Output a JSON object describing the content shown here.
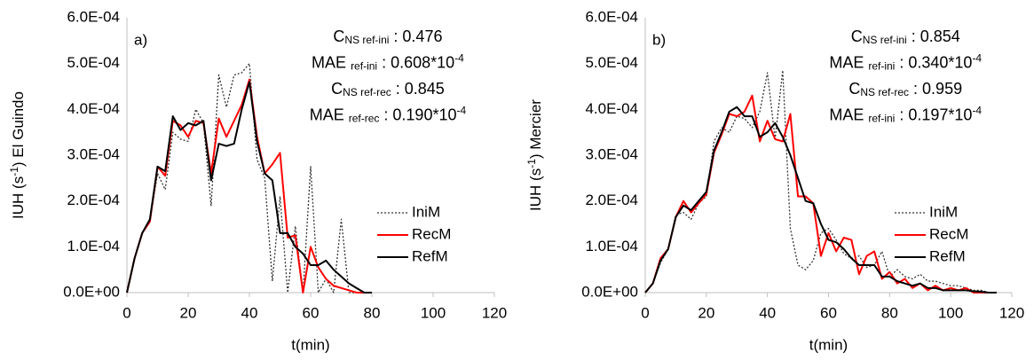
{
  "chart_data": [
    {
      "type": "line",
      "panel": "a)",
      "ylabel": [
        {
          "text": "IUH (s"
        },
        {
          "sup": "-1"
        },
        {
          "text": ")  El Guindo"
        }
      ],
      "xlabel": "t(min)",
      "xlim": [
        0,
        120
      ],
      "xticks": [
        0,
        20,
        40,
        60,
        80,
        100,
        120
      ],
      "ylim": [
        0,
        0.0006
      ],
      "yticks": [
        {
          "value": 0,
          "label": "0.0E+00"
        },
        {
          "value": 0.0001,
          "label": "1.0E-04"
        },
        {
          "value": 0.0002,
          "label": "2.0E-04"
        },
        {
          "value": 0.0003,
          "label": "3.0E-04"
        },
        {
          "value": 0.0004,
          "label": "4.0E-04"
        },
        {
          "value": 0.0005,
          "label": "5.0E-04"
        },
        {
          "value": 0.0006,
          "label": "6.0E-04"
        }
      ],
      "grid": false,
      "legend": "lower right",
      "annotations": [
        [
          {
            "text": "C"
          },
          {
            "sub": "NS ref-ini"
          },
          {
            "text": " : 0.476"
          }
        ],
        [
          {
            "text": "MAE "
          },
          {
            "sub": "ref-ini"
          },
          {
            "text": " : 0.608*10"
          },
          {
            "sup": "-4"
          }
        ],
        [
          {
            "text": "C"
          },
          {
            "sub": "NS ref-rec"
          },
          {
            "text": " : 0.845"
          }
        ],
        [
          {
            "text": "MAE "
          },
          {
            "sub": "ref-rec"
          },
          {
            "text": " : 0.190*10"
          },
          {
            "sup": "-4"
          }
        ]
      ],
      "x": [
        0,
        2.5,
        5,
        7.5,
        10,
        12.5,
        15,
        17.5,
        20,
        22.5,
        25,
        27.5,
        30,
        32.5,
        35,
        37.5,
        40,
        42.5,
        45,
        47.5,
        50,
        52.5,
        55,
        57.5,
        60,
        62.5,
        65,
        67.5,
        70,
        72.5,
        75,
        77.5,
        80
      ],
      "series": [
        {
          "name": "IniM",
          "color": "#333333",
          "style": "dotted",
          "values": [
            0,
            7.5e-05,
            0.00013,
            0.000155,
            0.00026,
            0.000225,
            0.00035,
            0.000335,
            0.00033,
            0.0004,
            0.00037,
            0.00019,
            0.000475,
            0.000405,
            0.000475,
            0.00048,
            0.0005,
            0.00029,
            0.00025,
            2.5e-05,
            0.00021,
            0,
            0.000145,
            0,
            0.000275,
            0,
            3e-05,
            0,
            0.00016,
            0,
            0,
            0,
            0
          ]
        },
        {
          "name": "RecM",
          "color": "#ff0000",
          "style": "solid",
          "values": [
            0,
            7.5e-05,
            0.00013,
            0.000155,
            0.000275,
            0.000255,
            0.000375,
            0.000365,
            0.00034,
            0.000375,
            0.00037,
            0.00026,
            0.00038,
            0.00034,
            0.000375,
            0.00041,
            0.000465,
            0.00034,
            0.00026,
            0.00028,
            0.000305,
            0.00012,
            0.000125,
            0,
            0.0001,
            5.5e-05,
            3e-05,
            1.5e-05,
            1e-05,
            5e-06,
            0,
            0,
            0
          ]
        },
        {
          "name": "RefM",
          "color": "#000000",
          "style": "solid",
          "values": [
            0,
            7.5e-05,
            0.00013,
            0.00016,
            0.000275,
            0.000265,
            0.000385,
            0.000355,
            0.00037,
            0.000365,
            0.000375,
            0.000245,
            0.000325,
            0.00032,
            0.000325,
            0.0004,
            0.00046,
            0.00033,
            0.00026,
            0.000245,
            0.00013,
            0.00013,
            0.0001,
            8.5e-05,
            6e-05,
            6e-05,
            7e-05,
            5e-05,
            3.5e-05,
            2e-05,
            1e-05,
            0,
            0
          ]
        }
      ]
    },
    {
      "type": "line",
      "panel": "b)",
      "ylabel": [
        {
          "text": "IUH (s"
        },
        {
          "sup": "-1"
        },
        {
          "text": ")  Mercier"
        }
      ],
      "xlabel": "t(min)",
      "xlim": [
        0,
        120
      ],
      "xticks": [
        0,
        20,
        40,
        60,
        80,
        100,
        120
      ],
      "ylim": [
        0,
        0.0006
      ],
      "yticks": [
        {
          "value": 0,
          "label": "0.0E+00"
        },
        {
          "value": 0.0001,
          "label": "1.0E-04"
        },
        {
          "value": 0.0002,
          "label": "2.0E-04"
        },
        {
          "value": 0.0003,
          "label": "3.0E-04"
        },
        {
          "value": 0.0004,
          "label": "4.0E-04"
        },
        {
          "value": 0.0005,
          "label": "5.0E-04"
        },
        {
          "value": 0.0006,
          "label": "6.0E-04"
        }
      ],
      "grid": false,
      "legend": "lower right",
      "annotations": [
        [
          {
            "text": "C"
          },
          {
            "sub": "NS ref-ini"
          },
          {
            "text": " : 0.854"
          }
        ],
        [
          {
            "text": "MAE "
          },
          {
            "sub": "ref-ini"
          },
          {
            "text": " : 0.340*10"
          },
          {
            "sup": "-4"
          }
        ],
        [
          {
            "text": "C"
          },
          {
            "sub": "NS ref-rec"
          },
          {
            "text": " : 0.959"
          }
        ],
        [
          {
            "text": "MAE "
          },
          {
            "sub": "ref-ini"
          },
          {
            "text": " : 0.197*10"
          },
          {
            "sup": "-4"
          }
        ]
      ],
      "x": [
        0,
        2.5,
        5,
        7.5,
        10,
        12.5,
        15,
        17.5,
        20,
        22.5,
        25,
        27.5,
        30,
        32.5,
        35,
        37.5,
        40,
        42.5,
        45,
        47.5,
        50,
        52.5,
        55,
        57.5,
        60,
        62.5,
        65,
        67.5,
        70,
        72.5,
        75,
        77.5,
        80,
        82.5,
        85,
        87.5,
        90,
        92.5,
        95,
        97.5,
        100,
        102.5,
        105,
        107.5,
        110,
        112.5,
        115
      ],
      "series": [
        {
          "name": "IniM",
          "color": "#333333",
          "style": "dotted",
          "values": [
            0,
            2e-05,
            6.5e-05,
            9.5e-05,
            0.00017,
            0.000175,
            0.00016,
            0.000195,
            0.00021,
            0.00033,
            0.00036,
            0.00035,
            0.000385,
            0.00038,
            0.00036,
            0.000395,
            0.00048,
            0.000335,
            0.000485,
            0.00014,
            6e-05,
            5e-05,
            7e-05,
            0.00013,
            0.00014,
            0.000115,
            8.5e-05,
            7.5e-05,
            8e-05,
            5.5e-05,
            6e-05,
            9e-05,
            3.5e-05,
            5e-05,
            3.5e-05,
            3e-05,
            4e-05,
            2.5e-05,
            2.5e-05,
            2e-05,
            1.5e-05,
            1.5e-05,
            1e-05,
            5e-06,
            5e-06,
            0,
            0
          ]
        },
        {
          "name": "RecM",
          "color": "#ff0000",
          "style": "solid",
          "values": [
            0,
            2e-05,
            7.5e-05,
            9.5e-05,
            0.000165,
            0.0002,
            0.000175,
            0.000195,
            0.000215,
            0.000305,
            0.000345,
            0.00039,
            0.000385,
            0.000395,
            0.00043,
            0.00033,
            0.000375,
            0.000335,
            0.00033,
            0.00039,
            0.00021,
            0.00021,
            0.000195,
            8e-05,
            0.00013,
            9e-05,
            0.00012,
            0.000115,
            4e-05,
            8e-05,
            9e-05,
            3e-05,
            4.5e-05,
            2e-05,
            3e-05,
            1e-05,
            2e-05,
            5e-06,
            1.5e-05,
            5e-06,
            1e-05,
            5e-06,
            1e-05,
            0,
            0,
            0,
            0
          ]
        },
        {
          "name": "RefM",
          "color": "#000000",
          "style": "solid",
          "values": [
            0,
            2e-05,
            7e-05,
            9.5e-05,
            0.000165,
            0.00019,
            0.00018,
            0.0002,
            0.00022,
            0.00031,
            0.00035,
            0.000395,
            0.000405,
            0.000385,
            0.000385,
            0.00034,
            0.00035,
            0.00037,
            0.00034,
            0.0003,
            0.00025,
            0.0002,
            0.000195,
            0.00015,
            0.000115,
            0.00011,
            9.5e-05,
            7.5e-05,
            6e-05,
            6e-05,
            6e-05,
            3.5e-05,
            3.5e-05,
            2.5e-05,
            2e-05,
            1.5e-05,
            2e-05,
            1e-05,
            1e-05,
            5e-06,
            5e-06,
            5e-06,
            5e-06,
            3e-06,
            2e-06,
            0,
            0
          ]
        }
      ]
    }
  ]
}
